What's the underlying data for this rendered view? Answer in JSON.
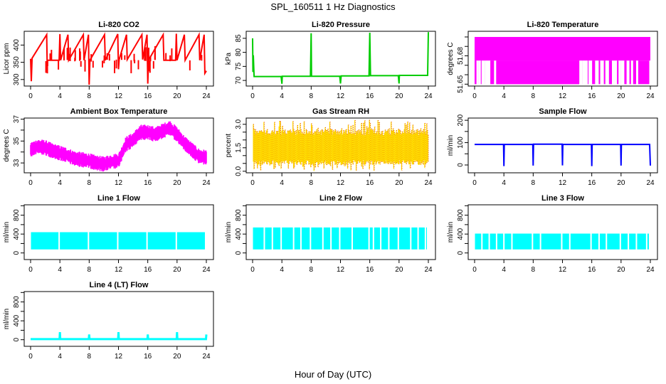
{
  "title": "SPL_160511  1 Hz Diagnostics",
  "xlabel": "Hour of Day (UTC)",
  "chart_data": [
    {
      "type": "line",
      "title": "Li-820 CO2",
      "ylabel": "Licor ppm",
      "color": "#ff0000",
      "xlim": [
        0,
        24
      ],
      "xticks": [
        0,
        4,
        8,
        12,
        16,
        20,
        24
      ],
      "ylim": [
        281,
        440
      ],
      "yticks": [
        300,
        350,
        400
      ],
      "yticklabels": [
        "300",
        "350",
        "400"
      ],
      "baseline": 355,
      "series": [
        {
          "name": "CO2",
          "x": [
            0,
            0.1,
            0.2,
            2.2,
            2.25,
            3.9,
            4.0,
            4.1,
            5.1,
            5.2,
            7.2,
            7.3,
            7.9,
            8.0,
            8.1,
            10.1,
            10.2,
            11.9,
            12.0,
            12.1,
            13.1,
            13.2,
            15.2,
            15.3,
            15.9,
            16.0,
            16.1,
            18.1,
            18.2,
            19.8,
            19.9,
            20.0,
            21.0,
            21.1,
            23.0,
            23.1,
            23.7,
            23.8,
            24.0
          ],
          "y": [
            360,
            295,
            362,
            430,
            356,
            356,
            432,
            356,
            430,
            356,
            430,
            356,
            430,
            285,
            356,
            430,
            356,
            432,
            330,
            358,
            430,
            358,
            430,
            358,
            430,
            288,
            356,
            430,
            356,
            356,
            433,
            356,
            430,
            356,
            430,
            356,
            430,
            318,
            325
          ]
        }
      ]
    },
    {
      "type": "line",
      "title": "Li-820 Pressure",
      "ylabel": "kPa",
      "color": "#00cc00",
      "xlim": [
        0,
        24
      ],
      "xticks": [
        0,
        4,
        8,
        12,
        16,
        20,
        24
      ],
      "ylim": [
        68,
        87.5
      ],
      "yticks": [
        70,
        75,
        80,
        85
      ],
      "yticklabels": [
        "70",
        "75",
        "80",
        "85"
      ],
      "series": [
        {
          "name": "Pressure",
          "x": [
            0,
            0.05,
            0.1,
            0.2,
            3.9,
            4.0,
            4.05,
            7.9,
            8.0,
            8.05,
            11.9,
            12.0,
            12.1,
            15.9,
            16.0,
            16.1,
            19.9,
            20.0,
            20.05,
            23.9,
            24.0
          ],
          "y": [
            85,
            73,
            79,
            71.4,
            71.4,
            68.8,
            71.5,
            71.5,
            86.8,
            71.5,
            71.5,
            68.9,
            71.6,
            71.6,
            87,
            71.7,
            71.7,
            68.9,
            71.8,
            71.8,
            87.2
          ]
        }
      ]
    },
    {
      "type": "area",
      "title": "Li-820 Temperature",
      "ylabel": "degrees C",
      "color": "#ff00ff",
      "xlim": [
        0,
        24
      ],
      "xticks": [
        0,
        4,
        8,
        12,
        16,
        20,
        24
      ],
      "ylim": [
        51.648,
        51.706
      ],
      "yticks": [
        51.65,
        51.66,
        51.67,
        51.68,
        51.69,
        51.7
      ],
      "yticklabels": [
        "51.65",
        "",
        "",
        "51.68",
        "",
        ""
      ],
      "series": [
        {
          "name": "Temperature",
          "upper": 51.7,
          "lower": 51.65,
          "mid": 51.675,
          "gaps_x": [
            0.4,
            0.7,
            1.1,
            1.3,
            1.6,
            1.8,
            2.0,
            2.8,
            14.4,
            14.6,
            14.9,
            15.1,
            15.3,
            15.7,
            15.9,
            16.6,
            16.8,
            17.3,
            17.5,
            18.0,
            18.2,
            18.9,
            19.1,
            19.3,
            19.8,
            20.1,
            20.3,
            20.9,
            21.0,
            21.5,
            22.2
          ]
        }
      ]
    },
    {
      "type": "line",
      "title": "Ambient Box Temperature",
      "ylabel": "degrees C",
      "color": "#ff00ff",
      "xlim": [
        0,
        24
      ],
      "xticks": [
        0,
        4,
        8,
        12,
        16,
        20,
        24
      ],
      "ylim": [
        32.1,
        37.1
      ],
      "yticks": [
        33,
        34,
        35,
        36,
        37
      ],
      "yticklabels": [
        "33",
        "",
        "35",
        "",
        "37"
      ],
      "series": [
        {
          "name": "Box Temp",
          "x": [
            0,
            1,
            2,
            3,
            4,
            5,
            6,
            7,
            8,
            9,
            10,
            11,
            12,
            12.5,
            13,
            14,
            15,
            16,
            17,
            18,
            19,
            20,
            21,
            22,
            23,
            24
          ],
          "y": [
            34.2,
            34.5,
            34.4,
            34.1,
            33.9,
            33.7,
            33.4,
            33.3,
            33.2,
            33.0,
            32.9,
            33.1,
            33.2,
            33.9,
            34.7,
            35.1,
            35.8,
            35.8,
            35.6,
            35.9,
            36.2,
            35.6,
            34.8,
            34.2,
            33.6,
            33.5
          ]
        }
      ]
    },
    {
      "type": "scatter",
      "title": "Gas Stream RH",
      "ylabel": "percent",
      "color": "#ffdd00",
      "color2": "#dd0000",
      "xlim": [
        0,
        24
      ],
      "xticks": [
        0,
        4,
        8,
        12,
        16,
        20,
        24
      ],
      "ylim": [
        -0.1,
        3.4
      ],
      "yticks": [
        0.0,
        0.5,
        1.0,
        1.5,
        2.0,
        2.5,
        3.0
      ],
      "yticklabels": [
        "0.0",
        "",
        "",
        "1.5",
        "",
        "",
        "3.0"
      ],
      "series": [
        {
          "name": "RH",
          "mean": 1.6,
          "band_low": 0.7,
          "band_high": 2.3,
          "min": 0.0,
          "max": 3.3
        }
      ]
    },
    {
      "type": "line",
      "title": "Sample Flow",
      "ylabel": "ml/min",
      "color": "#0000ff",
      "xlim": [
        0,
        24
      ],
      "xticks": [
        0,
        4,
        8,
        12,
        16,
        20,
        24
      ],
      "ylim": [
        -35,
        210
      ],
      "yticks": [
        0,
        50,
        100,
        150,
        200
      ],
      "yticklabels": [
        "0",
        "",
        "100",
        "",
        "200"
      ],
      "series": [
        {
          "name": "Sample Flow",
          "x": [
            0,
            3.95,
            4.0,
            4.05,
            7.95,
            8.0,
            8.05,
            11.95,
            12.0,
            12.05,
            15.95,
            16.0,
            16.05,
            19.95,
            20.0,
            20.05,
            23.9,
            24.0
          ],
          "y": [
            92,
            92,
            -5,
            92,
            92,
            -3,
            93,
            93,
            -2,
            92,
            92,
            -5,
            92,
            92,
            -3,
            92,
            92,
            -3
          ]
        }
      ]
    },
    {
      "type": "area",
      "title": "Line 1 Flow",
      "ylabel": "ml/min",
      "color": "#00ffff",
      "xlim": [
        0,
        24
      ],
      "xticks": [
        0,
        4,
        8,
        12,
        16,
        20,
        24
      ],
      "ylim": [
        -140,
        1020
      ],
      "yticks": [
        0,
        200,
        400,
        600,
        800,
        1000
      ],
      "yticklabels": [
        "0",
        "",
        "400",
        "",
        "800",
        ""
      ],
      "series": [
        {
          "name": "Line 1",
          "upper": 440,
          "lower": 75,
          "gaps_x": [
            3.9,
            7.9,
            11.9,
            15.9,
            19.9
          ]
        }
      ]
    },
    {
      "type": "area",
      "title": "Line 2 Flow",
      "ylabel": "ml/min",
      "color": "#00ffff",
      "xlim": [
        0,
        24
      ],
      "xticks": [
        0,
        4,
        8,
        12,
        16,
        20,
        24
      ],
      "ylim": [
        -140,
        1020
      ],
      "yticks": [
        0,
        200,
        400,
        600,
        800,
        1000
      ],
      "yticklabels": [
        "0",
        "",
        "400",
        "",
        "800",
        ""
      ],
      "series": [
        {
          "name": "Line 2",
          "upper": 540,
          "lower": 75,
          "gaps_x": [
            1.6,
            2.7,
            3.9,
            5.6,
            6.6,
            7.9,
            9.6,
            10.7,
            11.9,
            13.6,
            15.9,
            16.5,
            17.5,
            18.6,
            19.9,
            21.6,
            22.6,
            23.6
          ]
        }
      ]
    },
    {
      "type": "area",
      "title": "Line 3 Flow",
      "ylabel": "ml/min",
      "color": "#00ffff",
      "xlim": [
        0,
        24
      ],
      "xticks": [
        0,
        4,
        8,
        12,
        16,
        20,
        24
      ],
      "ylim": [
        -140,
        1020
      ],
      "yticks": [
        0,
        200,
        400,
        600,
        800,
        1000
      ],
      "yticklabels": [
        "0",
        "",
        "400",
        "",
        "800",
        ""
      ],
      "series": [
        {
          "name": "Line 3",
          "upper": 410,
          "lower": 75,
          "gaps_x": [
            1.0,
            2.0,
            3.0,
            4.0,
            5.1,
            7.9,
            9.0,
            11.9,
            13.0,
            15.9,
            17.0,
            18.0,
            19.9,
            21.0,
            22.1,
            23.5
          ]
        }
      ]
    },
    {
      "type": "line",
      "title": "Line 4 (LT) Flow",
      "ylabel": "ml/min",
      "color": "#00ffff",
      "xlim": [
        0,
        24
      ],
      "xticks": [
        0,
        4,
        8,
        12,
        16,
        20,
        24
      ],
      "ylim": [
        -140,
        1020
      ],
      "yticks": [
        0,
        200,
        400,
        600,
        800,
        1000
      ],
      "yticklabels": [
        "0",
        "",
        "400",
        "",
        "800",
        ""
      ],
      "series": [
        {
          "name": "Line 4",
          "x": [
            0,
            3.95,
            4.0,
            4.05,
            7.95,
            8.0,
            8.05,
            11.95,
            12.0,
            12.05,
            15.95,
            16.0,
            16.05,
            19.95,
            20.0,
            20.05,
            23.95,
            24.0
          ],
          "y": [
            12,
            12,
            160,
            12,
            12,
            110,
            12,
            12,
            160,
            12,
            12,
            110,
            12,
            12,
            160,
            12,
            12,
            110
          ]
        }
      ]
    }
  ]
}
